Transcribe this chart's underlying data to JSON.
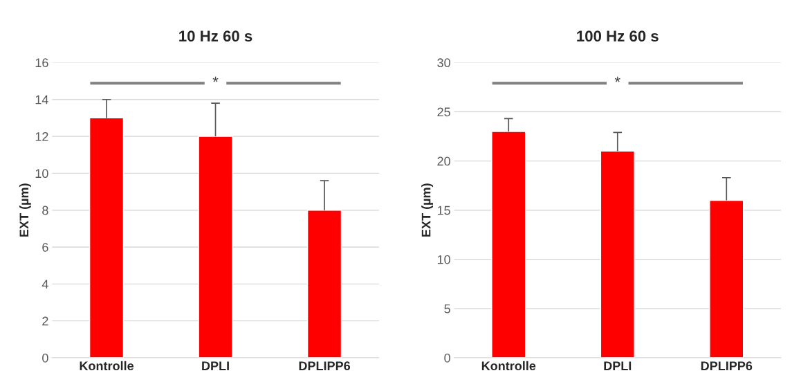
{
  "chart_data": [
    {
      "type": "bar",
      "title": "10 Hz 60 s",
      "ylabel": "EXT (µm)",
      "categories": [
        "Kontrolle",
        "DPLI",
        "DPLIPP6"
      ],
      "values": [
        13,
        12,
        8
      ],
      "color": "#ff0000",
      "errors": [
        [
          13,
          14
        ],
        [
          12,
          13.8
        ],
        [
          8,
          9.6
        ]
      ],
      "ylim": [
        0,
        16
      ],
      "yticks": [
        0,
        2,
        4,
        6,
        8,
        10,
        12,
        14,
        16
      ],
      "grid": "y",
      "annotations": [
        "*"
      ]
    },
    {
      "type": "bar",
      "title": "100 Hz 60 s",
      "ylabel": "EXT (µm)",
      "categories": [
        "Kontrolle",
        "DPLI",
        "DPLIPP6"
      ],
      "values": [
        23,
        21,
        16
      ],
      "color": "#ff0000",
      "errors": [
        [
          23,
          24.3
        ],
        [
          21,
          22.9
        ],
        [
          16,
          18.3
        ]
      ],
      "ylim": [
        0,
        30
      ],
      "yticks": [
        0,
        5,
        10,
        15,
        20,
        25,
        30
      ],
      "grid": "y",
      "annotations": [
        "*"
      ]
    }
  ]
}
